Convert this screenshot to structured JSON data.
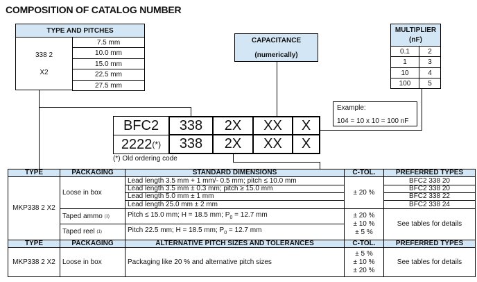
{
  "title": "COMPOSITION OF CATALOG NUMBER",
  "type_pitches": {
    "header": "TYPE AND PITCHES",
    "type_line1": "338 2",
    "type_line2": "X2",
    "pitches": [
      "7.5 mm",
      "10.0 mm",
      "15.0 mm",
      "22.5 mm",
      "27.5 mm"
    ]
  },
  "capacitance": {
    "line1": "CAPACITANCE",
    "line2": "(numerically)"
  },
  "multiplier": {
    "line1": "MULTIPLIER",
    "line2": "(nF)",
    "rows": [
      [
        "0.1",
        "2"
      ],
      [
        "1",
        "3"
      ],
      [
        "10",
        "4"
      ],
      [
        "100",
        "5"
      ]
    ]
  },
  "example": {
    "label": "Example:",
    "formula": "104 = 10 x 10 = 100 nF"
  },
  "code": {
    "row1": [
      "BFC2",
      "338",
      "2X",
      "XX",
      "X"
    ],
    "row2_prefix": "2222",
    "row2_sup": "(*)",
    "row2": [
      "338",
      "2X",
      "XX",
      "X"
    ],
    "note": "(*) Old ordering code"
  },
  "table": {
    "headers1": [
      "TYPE",
      "PACKAGING",
      "STANDARD DIMENSIONS",
      "C-TOL.",
      "PREFERRED TYPES"
    ],
    "type": "MKP338 2 X2",
    "loose": "Loose in box",
    "dims": [
      "Lead length 3.5 mm + 1 mm/- 0.5 mm; pitch ≤ 10.0 mm",
      "Lead length 3.5 mm ± 0.3 mm; pitch ≥ 15.0 mm",
      "Lead length 5.0 mm ± 1 mm",
      "Lead length 25.0 mm ± 2 mm"
    ],
    "ctol_loose": "± 20 %",
    "preferred": [
      "BFC2 338 20",
      "BFC2 338 20",
      "BFC2 338 22",
      "BFC2 338 24"
    ],
    "ammo": "Taped ammo",
    "ammo_sup": "(1)",
    "ammo_dim": "Pitch ≤ 15.0 mm; H = 18.5 mm; P",
    "sub0": "0",
    "dim_end": " = 12.7 mm",
    "reel": "Taped reel",
    "reel_sup": "(1)",
    "reel_dim": "Pitch 22.5 mm; H = 18.5 mm; P",
    "ctol_taped": [
      "± 20 %",
      "± 10 %",
      "± 5 %"
    ],
    "see_tables": "See tables for details",
    "headers2": [
      "TYPE",
      "PACKAGING",
      "ALTERNATIVE PITCH SIZES AND TOLERANCES",
      "C-TOL.",
      "PREFERRED TYPES"
    ],
    "alt_type": "MKP338 2 X2",
    "alt_pack": "Loose in box",
    "alt_desc": "Packaging like 20 % and alternative pitch sizes",
    "alt_ctol": [
      "± 5 %",
      "± 10 %",
      "± 20 %"
    ],
    "alt_pref": "See tables for details"
  },
  "colors": {
    "header_bg": "#d3e6f5"
  }
}
